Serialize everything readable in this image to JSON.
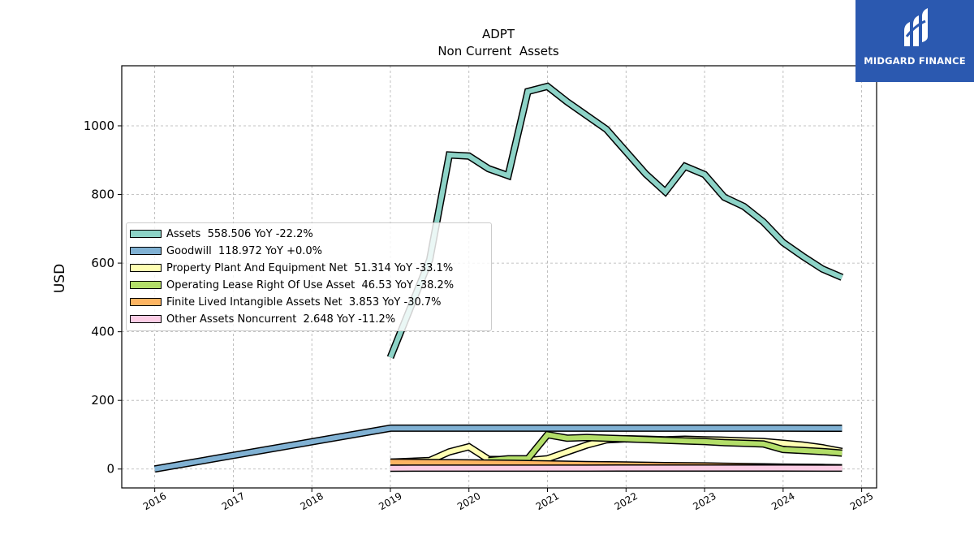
{
  "logo": {
    "text": "MIDGARD FINANCE"
  },
  "chart_data": {
    "type": "line",
    "title": "ADPT",
    "subtitle": "Non Current  Assets",
    "ylabel": "USD",
    "xlabel": "",
    "ylim": [
      -55,
      1175
    ],
    "xlim": [
      2015.58,
      2025.19
    ],
    "y_ticks": [
      0,
      200,
      400,
      600,
      800,
      1000
    ],
    "x_ticks": [
      "2016",
      "2017",
      "2018",
      "2019",
      "2020",
      "2021",
      "2022",
      "2023",
      "2024",
      "2025"
    ],
    "grid": true,
    "legend_position": "center-left",
    "series": [
      {
        "name": "Assets",
        "legend_label": "Assets  558.506 YoY -22.2%",
        "color": "#8dd3c7",
        "points": [
          [
            2019.0,
            325
          ],
          [
            2019.5,
            610
          ],
          [
            2019.75,
            915
          ],
          [
            2020.0,
            912
          ],
          [
            2020.25,
            875
          ],
          [
            2020.5,
            855
          ],
          [
            2020.75,
            1100
          ],
          [
            2021.0,
            1115
          ],
          [
            2021.25,
            1070
          ],
          [
            2021.5,
            1030
          ],
          [
            2021.75,
            990
          ],
          [
            2022.0,
            925
          ],
          [
            2022.25,
            860
          ],
          [
            2022.5,
            808
          ],
          [
            2022.75,
            882
          ],
          [
            2023.0,
            858
          ],
          [
            2023.25,
            792
          ],
          [
            2023.5,
            765
          ],
          [
            2023.75,
            720
          ],
          [
            2024.0,
            660
          ],
          [
            2024.25,
            620
          ],
          [
            2024.5,
            583
          ],
          [
            2024.75,
            558.5
          ]
        ]
      },
      {
        "name": "Goodwill",
        "legend_label": "Goodwill  118.972 YoY +0.0%",
        "color": "#80b1d3",
        "points": [
          [
            2016.0,
            0
          ],
          [
            2019.0,
            119
          ],
          [
            2020.0,
            119
          ],
          [
            2021.0,
            119
          ],
          [
            2022.0,
            119
          ],
          [
            2023.0,
            119
          ],
          [
            2024.0,
            119
          ],
          [
            2024.75,
            118.972
          ]
        ]
      },
      {
        "name": "Property Plant And Equipment Net",
        "legend_label": "Property Plant And Equipment Net  51.314 YoY -33.1%",
        "color": "#ffffb3",
        "points": [
          [
            2019.0,
            20
          ],
          [
            2019.5,
            25
          ],
          [
            2019.75,
            50
          ],
          [
            2020.0,
            65
          ],
          [
            2020.25,
            28
          ],
          [
            2020.5,
            27
          ],
          [
            2020.75,
            25
          ],
          [
            2021.0,
            30
          ],
          [
            2021.25,
            50
          ],
          [
            2021.5,
            70
          ],
          [
            2021.75,
            85
          ],
          [
            2022.0,
            88
          ],
          [
            2022.25,
            87
          ],
          [
            2022.5,
            85
          ],
          [
            2022.75,
            87
          ],
          [
            2023.0,
            85
          ],
          [
            2023.25,
            84
          ],
          [
            2023.5,
            82
          ],
          [
            2023.75,
            80
          ],
          [
            2024.0,
            75
          ],
          [
            2024.25,
            70
          ],
          [
            2024.5,
            62
          ],
          [
            2024.75,
            51.3
          ]
        ]
      },
      {
        "name": "Operating Lease Right Of Use Asset",
        "legend_label": "Operating Lease Right Of Use Asset  46.53 YoY -38.2%",
        "color": "#b3de69",
        "points": [
          [
            2020.25,
            25
          ],
          [
            2020.5,
            30
          ],
          [
            2020.75,
            30
          ],
          [
            2021.0,
            100
          ],
          [
            2021.25,
            90
          ],
          [
            2021.5,
            92
          ],
          [
            2021.75,
            90
          ],
          [
            2022.0,
            88
          ],
          [
            2022.25,
            86
          ],
          [
            2022.5,
            84
          ],
          [
            2022.75,
            82
          ],
          [
            2023.0,
            80
          ],
          [
            2023.25,
            77
          ],
          [
            2023.5,
            75
          ],
          [
            2023.75,
            73
          ],
          [
            2024.0,
            57
          ],
          [
            2024.25,
            54
          ],
          [
            2024.5,
            51
          ],
          [
            2024.75,
            46.5
          ]
        ]
      },
      {
        "name": "Finite Lived Intangible Assets Net",
        "legend_label": "Finite Lived Intangible Assets Net  3.853 YoY -30.7%",
        "color": "#fdb462",
        "points": [
          [
            2019.0,
            20
          ],
          [
            2019.5,
            19
          ],
          [
            2020.0,
            18
          ],
          [
            2020.5,
            17
          ],
          [
            2021.0,
            15
          ],
          [
            2021.5,
            13
          ],
          [
            2022.0,
            12
          ],
          [
            2022.5,
            10
          ],
          [
            2023.0,
            9
          ],
          [
            2023.5,
            7.5
          ],
          [
            2024.0,
            5.5
          ],
          [
            2024.5,
            4.5
          ],
          [
            2024.75,
            3.853
          ]
        ]
      },
      {
        "name": "Other Assets Noncurrent",
        "legend_label": "Other Assets Noncurrent  2.648 YoY -11.2%",
        "color": "#fccde5",
        "points": [
          [
            2019.0,
            2.5
          ],
          [
            2019.5,
            2.6
          ],
          [
            2020.0,
            2.7
          ],
          [
            2020.5,
            2.7
          ],
          [
            2021.0,
            2.8
          ],
          [
            2021.5,
            2.8
          ],
          [
            2022.0,
            2.9
          ],
          [
            2022.5,
            2.9
          ],
          [
            2023.0,
            3.0
          ],
          [
            2023.5,
            2.9
          ],
          [
            2024.0,
            3.0
          ],
          [
            2024.5,
            2.8
          ],
          [
            2024.75,
            2.648
          ]
        ]
      }
    ]
  }
}
